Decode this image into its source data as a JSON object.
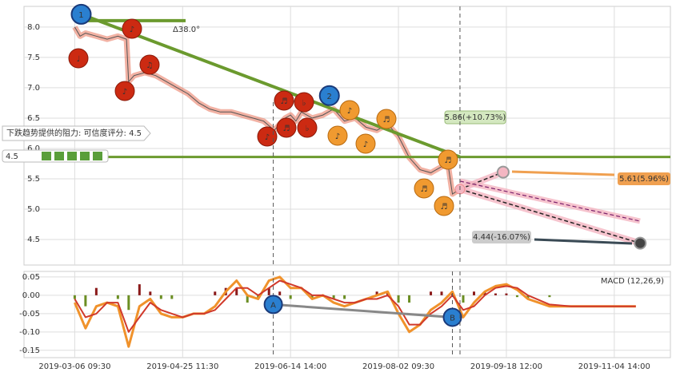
{
  "chart_data": [
    {
      "type": "line",
      "title_angle": "Δ38.0°",
      "resistance_note": "下跌趋势提供的阻力: 可信度评分: 4.5",
      "score_badge": "4.5",
      "xlim": [
        -47,
        552
      ],
      "ylim": [
        4.08,
        8.34
      ],
      "yticks": [
        4.5,
        {
          "value": 5,
          "label": "5.0"
        },
        5.5,
        {
          "value": 6,
          "label": "6.0"
        },
        6.5,
        {
          "value": 7,
          "label": "7.0"
        },
        7.5,
        {
          "value": 8,
          "label": "8.0"
        }
      ],
      "grid": true,
      "color": "#555555",
      "x": [
        0,
        5,
        10,
        20,
        30,
        40,
        48,
        50,
        55,
        65,
        75,
        85,
        95,
        105,
        115,
        125,
        135,
        145,
        155,
        165,
        175,
        185,
        195,
        200,
        205,
        210,
        220,
        230,
        240,
        250,
        260,
        270,
        280,
        290,
        300,
        310,
        320,
        330,
        340,
        345,
        350,
        357
      ],
      "values": [
        8.0,
        7.85,
        7.9,
        7.85,
        7.8,
        7.85,
        7.8,
        7.1,
        7.2,
        7.25,
        7.2,
        7.1,
        7.0,
        6.9,
        6.75,
        6.65,
        6.6,
        6.6,
        6.55,
        6.5,
        6.45,
        6.3,
        6.5,
        6.55,
        6.45,
        6.6,
        6.5,
        6.55,
        6.65,
        6.45,
        6.5,
        6.35,
        6.3,
        6.4,
        6.2,
        5.85,
        5.65,
        5.6,
        5.7,
        5.85,
        5.25,
        5.33
      ],
      "resistance": {
        "value": 5.86,
        "label": "5.86(+10.73%)",
        "color": "#6b9a2e"
      },
      "forecasts": [
        {
          "x": 397,
          "value": 5.61,
          "label": "5.61(5.96%)"
        },
        {
          "x": 524,
          "value": 4.44,
          "label": "4.44(-16.07%)"
        }
      ],
      "wave_labels": [
        {
          "label": "1",
          "x": 6,
          "value": 8.21
        },
        {
          "label": "2",
          "x": 236,
          "value": 6.87
        }
      ],
      "pattern_symbols": [
        "♩",
        "♪",
        "♪",
        "♫",
        "♬",
        "♪",
        "♬",
        "♭",
        "♭",
        "♪",
        "♪",
        "♪",
        "♬",
        "♬",
        "♬",
        "♬"
      ]
    },
    {
      "type": "macd",
      "label": "MACD (12,26,9)",
      "xlim": [
        -47,
        552
      ],
      "xticks": [
        {
          "value": 0,
          "label": "2019-03-06 09:30"
        },
        {
          "value": 100,
          "label": "2019-04-25 11:30"
        },
        {
          "value": 200,
          "label": "2019-06-14 14:00"
        },
        {
          "value": 300,
          "label": "2019-08-02 09:30"
        },
        {
          "value": 400,
          "label": "2019-09-18 12:00"
        },
        {
          "value": 500,
          "label": "2019-11-04 14:00"
        }
      ],
      "ylim": [
        -0.17,
        0.065
      ],
      "yticks": [
        -0.15,
        {
          "value": -0.1,
          "label": "-0.10"
        },
        -0.05,
        {
          "value": 0,
          "label": "0.00"
        },
        0.05
      ],
      "grid": true,
      "x": [
        0,
        10,
        20,
        30,
        40,
        50,
        60,
        70,
        80,
        90,
        100,
        110,
        120,
        130,
        140,
        150,
        160,
        170,
        180,
        190,
        200,
        210,
        220,
        230,
        240,
        250,
        260,
        270,
        280,
        290,
        300,
        310,
        320,
        330,
        340,
        350,
        360,
        370,
        380,
        390,
        400,
        410,
        420,
        440,
        460,
        480,
        500,
        520
      ],
      "macd": [
        -0.02,
        -0.09,
        -0.03,
        -0.02,
        -0.03,
        -0.14,
        -0.03,
        -0.01,
        -0.05,
        -0.06,
        -0.06,
        -0.05,
        -0.05,
        -0.03,
        0.01,
        0.04,
        0.0,
        -0.01,
        0.04,
        0.05,
        0.02,
        0.02,
        -0.01,
        0.0,
        -0.02,
        -0.03,
        -0.02,
        -0.01,
        0.0,
        0.01,
        -0.05,
        -0.1,
        -0.08,
        -0.04,
        -0.02,
        0.01,
        -0.06,
        -0.02,
        0.01,
        0.025,
        0.03,
        0.015,
        -0.01,
        -0.03,
        -0.03,
        -0.03,
        -0.03,
        -0.03
      ],
      "signal": [
        -0.01,
        -0.06,
        -0.05,
        -0.02,
        -0.02,
        -0.1,
        -0.06,
        -0.02,
        -0.04,
        -0.05,
        -0.06,
        -0.05,
        -0.05,
        -0.04,
        -0.01,
        0.02,
        0.02,
        0.0,
        0.02,
        0.04,
        0.03,
        0.02,
        0.0,
        0.0,
        -0.01,
        -0.02,
        -0.02,
        -0.01,
        -0.01,
        0.0,
        -0.03,
        -0.08,
        -0.08,
        -0.05,
        -0.03,
        0.0,
        -0.04,
        -0.03,
        0.0,
        0.02,
        0.025,
        0.02,
        0.0,
        -0.025,
        -0.03,
        -0.03,
        -0.03,
        -0.03
      ],
      "histogram": [
        -0.01,
        -0.03,
        0.02,
        0.0,
        -0.01,
        -0.04,
        0.03,
        0.01,
        -0.01,
        -0.01,
        0.0,
        0.0,
        0.0,
        0.01,
        0.02,
        0.02,
        -0.02,
        -0.01,
        0.02,
        0.01,
        -0.01,
        0.0,
        -0.01,
        0.0,
        -0.01,
        -0.01,
        0.0,
        0.0,
        0.01,
        0.01,
        -0.02,
        -0.02,
        0.0,
        0.01,
        0.01,
        0.01,
        -0.02,
        0.01,
        0.01,
        0.005,
        0.005,
        -0.005,
        -0.01,
        -0.005,
        0,
        0,
        0,
        0
      ],
      "macd_color": "#f0922b",
      "signal_color": "#d0392b",
      "hist_up_color": "#8b1a1a",
      "hist_down_color": "#6b8e23",
      "markers": [
        {
          "label": "A",
          "x": 184,
          "value": -0.025
        },
        {
          "label": "B",
          "x": 350,
          "value": -0.06
        }
      ]
    }
  ]
}
